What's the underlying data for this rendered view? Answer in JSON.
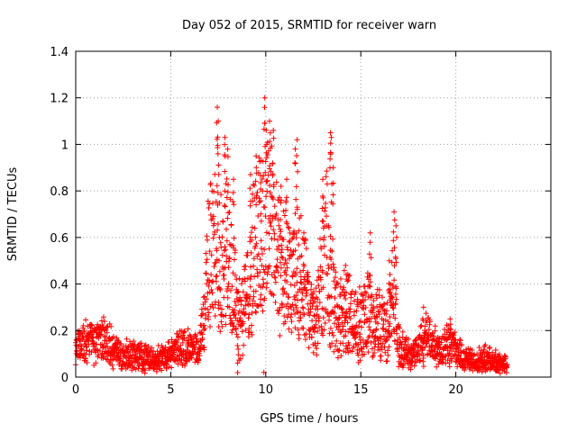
{
  "chart_data": {
    "type": "scatter",
    "title": "Day 052 of 2015, SRMTID for receiver warn",
    "xlabel": "GPS time / hours",
    "ylabel": "SRMTID / TECUs",
    "xlim": [
      0,
      25
    ],
    "ylim": [
      0,
      1.4
    ],
    "x_ticks": [
      "0",
      "5",
      "10",
      "15",
      "20"
    ],
    "y_ticks": [
      "0",
      "0.2",
      "0.4",
      "0.6",
      "0.8",
      "1",
      "1.2",
      "1.4"
    ],
    "grid": true,
    "marker": "+",
    "color": "#ff0000",
    "time_range_hours": [
      0,
      22.7
    ],
    "envelope": [
      [
        0.0,
        0.15
      ],
      [
        0.5,
        0.16
      ],
      [
        1.0,
        0.15
      ],
      [
        1.5,
        0.18
      ],
      [
        2.0,
        0.12
      ],
      [
        2.5,
        0.1
      ],
      [
        3.0,
        0.1
      ],
      [
        3.5,
        0.09
      ],
      [
        4.0,
        0.08
      ],
      [
        4.5,
        0.09
      ],
      [
        5.0,
        0.1
      ],
      [
        5.5,
        0.14
      ],
      [
        6.0,
        0.13
      ],
      [
        6.5,
        0.11
      ],
      [
        6.8,
        0.35
      ],
      [
        7.0,
        0.6
      ],
      [
        7.3,
        0.62
      ],
      [
        7.6,
        0.55
      ],
      [
        7.8,
        0.75
      ],
      [
        8.0,
        0.58
      ],
      [
        8.3,
        0.48
      ],
      [
        8.6,
        0.3
      ],
      [
        9.0,
        0.38
      ],
      [
        9.3,
        0.55
      ],
      [
        9.5,
        0.68
      ],
      [
        9.8,
        0.7
      ],
      [
        10.0,
        0.78
      ],
      [
        10.3,
        0.85
      ],
      [
        10.6,
        0.55
      ],
      [
        11.0,
        0.58
      ],
      [
        11.3,
        0.42
      ],
      [
        11.6,
        0.5
      ],
      [
        12.0,
        0.48
      ],
      [
        12.3,
        0.3
      ],
      [
        12.6,
        0.25
      ],
      [
        12.9,
        0.45
      ],
      [
        13.2,
        0.62
      ],
      [
        13.5,
        0.38
      ],
      [
        13.8,
        0.3
      ],
      [
        14.2,
        0.32
      ],
      [
        14.6,
        0.28
      ],
      [
        15.0,
        0.25
      ],
      [
        15.4,
        0.35
      ],
      [
        15.7,
        0.24
      ],
      [
        16.0,
        0.28
      ],
      [
        16.4,
        0.22
      ],
      [
        16.7,
        0.42
      ],
      [
        17.0,
        0.14
      ],
      [
        17.5,
        0.1
      ],
      [
        18.0,
        0.12
      ],
      [
        18.4,
        0.2
      ],
      [
        18.8,
        0.15
      ],
      [
        19.2,
        0.12
      ],
      [
        19.6,
        0.18
      ],
      [
        20.0,
        0.12
      ],
      [
        20.5,
        0.08
      ],
      [
        21.0,
        0.07
      ],
      [
        21.5,
        0.08
      ],
      [
        22.0,
        0.07
      ],
      [
        22.7,
        0.06
      ]
    ],
    "spikes": [
      [
        7.45,
        1.16
      ],
      [
        7.5,
        1.1
      ],
      [
        7.85,
        1.03
      ],
      [
        8.0,
        0.98
      ],
      [
        8.3,
        0.85
      ],
      [
        9.2,
        0.87
      ],
      [
        9.5,
        0.9
      ],
      [
        9.75,
        0.93
      ],
      [
        9.95,
        1.2
      ],
      [
        10.05,
        1.0
      ],
      [
        10.2,
        1.1
      ],
      [
        10.4,
        1.06
      ],
      [
        10.8,
        0.82
      ],
      [
        11.1,
        0.85
      ],
      [
        11.55,
        0.98
      ],
      [
        11.65,
        1.02
      ],
      [
        12.0,
        0.62
      ],
      [
        13.0,
        0.85
      ],
      [
        13.4,
        1.05
      ],
      [
        13.45,
        1.03
      ],
      [
        13.55,
        0.9
      ],
      [
        14.2,
        0.48
      ],
      [
        15.5,
        0.62
      ],
      [
        16.5,
        0.5
      ],
      [
        16.75,
        0.71
      ],
      [
        16.85,
        0.65
      ],
      [
        18.3,
        0.3
      ],
      [
        19.7,
        0.25
      ],
      [
        9.9,
        0.02
      ],
      [
        8.55,
        0.12
      ]
    ]
  }
}
